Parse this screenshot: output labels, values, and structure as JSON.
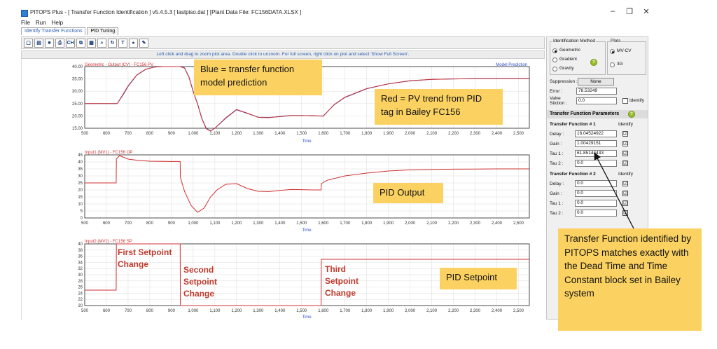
{
  "window": {
    "title": "PITOPS Plus - [ Transfer Function Identification ] v5.4.5.3  [ lastpiso.dat ]  [Plant Data File: FC156DATA.XLSX ]",
    "min_glyph": "–",
    "max_glyph": "❐",
    "close_glyph": "✕"
  },
  "menu": [
    "File",
    "Run",
    "Help"
  ],
  "tabs": [
    {
      "label": "Identify Transfer Functions",
      "active": true
    },
    {
      "label": "PID Tuning",
      "active": false
    }
  ],
  "toolbar": {
    "buttons": [
      "new-icon",
      "open-icon",
      "save-icon",
      "print-icon",
      "ch-icon",
      "copy-icon",
      "grid-icon",
      "zoom-icon",
      "refresh-icon",
      "text-icon",
      "help-icon",
      "pen-icon"
    ],
    "ch_label": "CH",
    "text_label": "T"
  },
  "hint": "Left click and drag to zoom plot area. Double click to unzoom. For full screen, right click on plot and select 'Show Full Screen'.",
  "charts": {
    "pv": {
      "title": "Geometric - Output (CV) - FC156 PV",
      "right_label": "Model Prediction",
      "xlabel": "Time"
    },
    "op": {
      "title": "Input1 (MV1) - FC156 OP",
      "xlabel": "Time"
    },
    "sp": {
      "title": "Input2 (MV2) - FC156 SP",
      "xlabel": "Time"
    }
  },
  "chart_data": [
    {
      "type": "line",
      "title": "Geometric - Output (CV) - FC156 PV",
      "xlabel": "Time",
      "xlim": [
        500,
        2550
      ],
      "ylim": [
        15,
        40
      ],
      "xticks": [
        "500",
        "600",
        "700",
        "800",
        "900",
        "1,000",
        "1,100",
        "1,200",
        "1,300",
        "1,400",
        "1,500",
        "1,600",
        "1,700",
        "1,800",
        "1,900",
        "2,000",
        "2,100",
        "2,200",
        "2,300",
        "2,400",
        "2,500"
      ],
      "yticks": [
        "15.00",
        "20.00",
        "25.00",
        "30.00",
        "35.00",
        "40.00"
      ],
      "series": [
        {
          "name": "Model Prediction",
          "color": "#3050c8",
          "x": [
            500,
            650,
            680,
            700,
            740,
            780,
            820,
            860,
            900,
            940,
            960,
            980,
            1000,
            1020,
            1040,
            1060,
            1080,
            1100,
            1150,
            1200,
            1250,
            1300,
            1350,
            1400,
            1450,
            1500,
            1550,
            1600,
            1650,
            1700,
            1800,
            1900,
            2000,
            2100,
            2200,
            2300,
            2400,
            2550
          ],
          "y": [
            25,
            25,
            29,
            32,
            36.5,
            38.8,
            39.8,
            40,
            40,
            40,
            39.5,
            36,
            30,
            25,
            19,
            15,
            14,
            15,
            19,
            22.5,
            21,
            19.5,
            19.4,
            19.7,
            20.1,
            20.2,
            20,
            20,
            24.5,
            27.5,
            31,
            33,
            34.2,
            34.8,
            35,
            35.1,
            35.1,
            35.1
          ]
        },
        {
          "name": "FC156 PV",
          "color": "#d03030",
          "x": [
            500,
            650,
            680,
            700,
            740,
            780,
            820,
            860,
            900,
            940,
            960,
            980,
            1000,
            1020,
            1040,
            1060,
            1080,
            1100,
            1150,
            1200,
            1250,
            1300,
            1350,
            1400,
            1450,
            1500,
            1550,
            1600,
            1650,
            1700,
            1800,
            1900,
            2000,
            2100,
            2200,
            2300,
            2400,
            2550
          ],
          "y": [
            25,
            25,
            29.3,
            32.2,
            36.6,
            38.9,
            39.8,
            40,
            40,
            40,
            39.4,
            35.8,
            29.8,
            24.8,
            18.8,
            14.8,
            13.9,
            15,
            19.2,
            22.6,
            21.1,
            19.4,
            19.3,
            19.8,
            20.2,
            20.1,
            20.1,
            19.9,
            24.6,
            27.6,
            31.1,
            33,
            34.3,
            34.8,
            35,
            35.1,
            35.1,
            35.1
          ]
        }
      ]
    },
    {
      "type": "line",
      "title": "Input1 (MV1) - FC156 OP",
      "xlabel": "Time",
      "xlim": [
        500,
        2550
      ],
      "ylim": [
        0,
        45
      ],
      "xticks": [
        "500",
        "600",
        "700",
        "800",
        "900",
        "1,000",
        "1,100",
        "1,200",
        "1,300",
        "1,400",
        "1,500",
        "1,600",
        "1,700",
        "1,800",
        "1,900",
        "2,000",
        "2,100",
        "2,200",
        "2,300",
        "2,400",
        "2,500"
      ],
      "yticks": [
        "0",
        "5",
        "10",
        "15",
        "20",
        "25",
        "30",
        "35",
        "40",
        "45"
      ],
      "series": [
        {
          "name": "FC156 OP",
          "color": "#d03030",
          "x": [
            500,
            645,
            646,
            660,
            700,
            750,
            800,
            900,
            940,
            941,
            960,
            990,
            1020,
            1050,
            1080,
            1110,
            1150,
            1200,
            1250,
            1300,
            1350,
            1400,
            1450,
            1500,
            1550,
            1590,
            1591,
            1620,
            1700,
            1800,
            1900,
            2000,
            2100,
            2200,
            2300,
            2400,
            2550
          ],
          "y": [
            25,
            25,
            42,
            44.5,
            42,
            41,
            40.5,
            40.3,
            40.3,
            29,
            19,
            9,
            4,
            7,
            15,
            20,
            24,
            24.5,
            21,
            19,
            18.8,
            19.6,
            20.3,
            20.2,
            20,
            20,
            24.5,
            27,
            30,
            32,
            33.5,
            34.3,
            34.6,
            34.8,
            34.9,
            35,
            35
          ]
        }
      ]
    },
    {
      "type": "line",
      "title": "Input2 (MV2) - FC156 SP",
      "xlabel": "Time",
      "xlim": [
        500,
        2550
      ],
      "ylim": [
        20,
        40
      ],
      "xticks": [
        "500",
        "600",
        "700",
        "800",
        "900",
        "1,000",
        "1,100",
        "1,200",
        "1,300",
        "1,400",
        "1,500",
        "1,600",
        "1,700",
        "1,800",
        "1,900",
        "2,000",
        "2,100",
        "2,200",
        "2,300",
        "2,400",
        "2,500"
      ],
      "yticks": [
        "20",
        "22",
        "24",
        "26",
        "28",
        "30",
        "32",
        "34",
        "36",
        "38",
        "40"
      ],
      "series": [
        {
          "name": "FC156 SP",
          "color": "#d03030",
          "x": [
            500,
            645,
            646,
            940,
            941,
            1590,
            1591,
            2550
          ],
          "y": [
            25,
            25,
            40,
            40,
            20,
            20,
            35,
            35
          ]
        }
      ]
    }
  ],
  "annotations": {
    "blue": "Blue = transfer function model prediction",
    "red": "Red = PV trend from PID tag in Bailey FC156",
    "pid_output": "PID Output",
    "pid_setpoint": "PID Setpoint",
    "tf_note": "Transfer Function identified by PITOPS matches exactly with the Dead Time and Time Constant block set in Bailey system",
    "first_change": "First Setpoint Change",
    "second_change": "Second Setpoint Change",
    "third_change": "Third Setpoint Change"
  },
  "panel": {
    "ident_method_label": "Identification Method",
    "methods": [
      {
        "label": "Geometric",
        "selected": true
      },
      {
        "label": "Gradient",
        "selected": false
      },
      {
        "label": "Gravity",
        "selected": false
      }
    ],
    "plots_label": "Plots",
    "plot_options": [
      {
        "label": "MV-CV",
        "selected": true
      },
      {
        "label": "3G",
        "selected": false
      }
    ],
    "suppression_label": "Suppression :",
    "suppression_value": "None",
    "error_label": "Error :",
    "error_value": "78.53249",
    "valve_label_1": "Valve",
    "valve_label_2": "Stiction :",
    "valve_value": "0.0",
    "identify_label": "Identify",
    "tfp_header": "Transfer Function Parameters",
    "tf1": {
      "title": "Transfer Function # 1",
      "identify": "Identify",
      "rows": [
        {
          "label": "Delay :",
          "value": "16.04524922",
          "checked": true
        },
        {
          "label": "Gain :",
          "value": "1.00429151",
          "checked": true
        },
        {
          "label": "Tau 1 :",
          "value": "61.85144433",
          "checked": true
        },
        {
          "label": "Tau 2 :",
          "value": "0.0",
          "checked": true
        }
      ]
    },
    "tf2": {
      "title": "Transfer Function # 2",
      "identify": "Identify",
      "rows": [
        {
          "label": "Delay :",
          "value": "0.0",
          "checked": true
        },
        {
          "label": "Gain :",
          "value": "0.0",
          "checked": true
        },
        {
          "label": "Tau 1 :",
          "value": "0.0",
          "checked": true
        },
        {
          "label": "Tau 2 :",
          "value": "0.0",
          "checked": true
        }
      ]
    },
    "check_glyph": "☑",
    "help_glyph": "?"
  }
}
